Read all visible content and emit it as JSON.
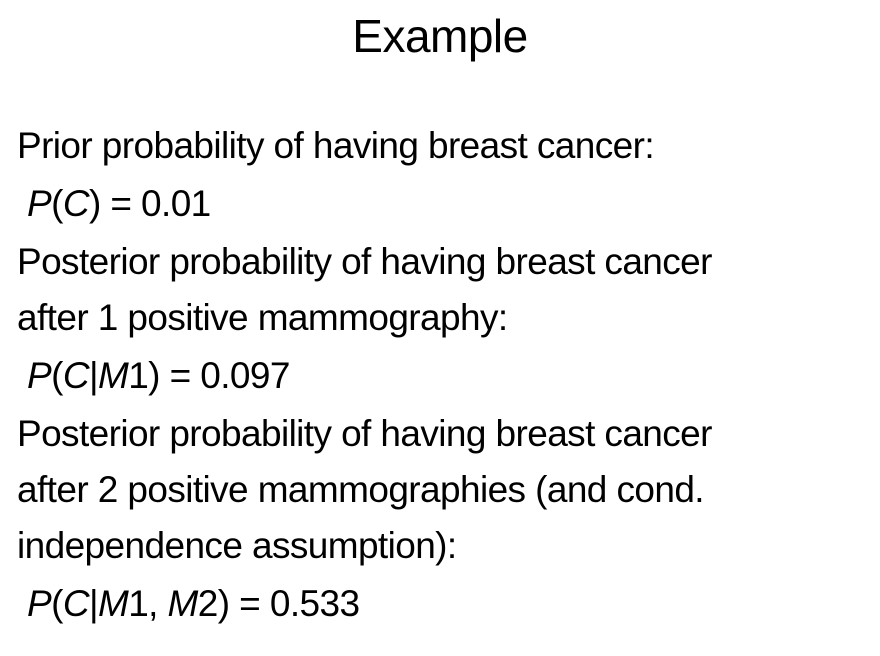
{
  "slide": {
    "title": "Example",
    "prior_label": "Prior probability of having breast cancer:",
    "prior_formula": {
      "p": "P",
      "open": "(",
      "c": "C",
      "close": ") = 0.01"
    },
    "post1_line1": "Posterior probability of having breast cancer",
    "post1_line2": "after 1 positive mammography:",
    "post1_formula": {
      "p": "P",
      "open": "(",
      "c": "C",
      "bar": "|",
      "m": "M",
      "rest": "1) = 0.097"
    },
    "post2_line1": "Posterior probability of having breast cancer",
    "post2_line2": "after 2 positive mammographies (and cond.",
    "post2_line3": "independence assumption):",
    "post2_formula": {
      "p": "P",
      "open": "(",
      "c": "C",
      "bar": "|",
      "m1": "M",
      "mid": "1, ",
      "m2": "M",
      "rest": "2) = 0.533"
    }
  }
}
